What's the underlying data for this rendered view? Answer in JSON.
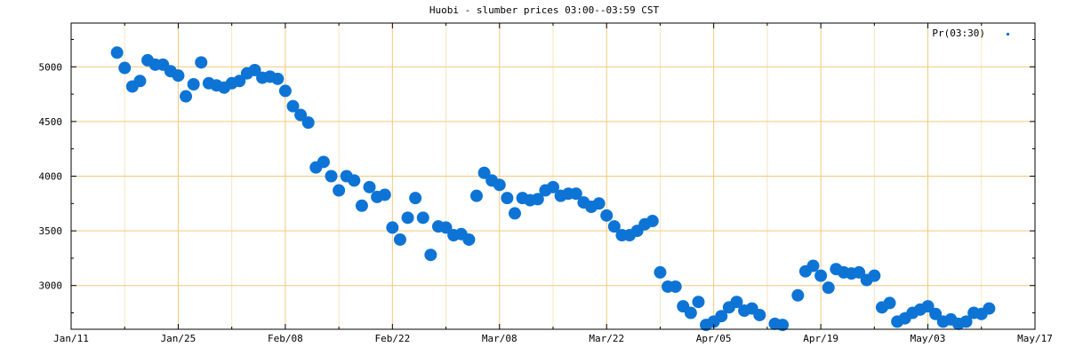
{
  "chart_data": {
    "type": "scatter",
    "title": "Huobi - slumber prices 03:00--03:59 CST",
    "xlabel": "",
    "ylabel": "",
    "x_range": [
      "2018-01-11",
      "2018-05-17"
    ],
    "ylim": [
      2600,
      5400
    ],
    "x_ticks": [
      {
        "date": "2018-01-11",
        "label": "Jan/11"
      },
      {
        "date": "2018-01-25",
        "label": "Jan/25"
      },
      {
        "date": "2018-02-08",
        "label": "Feb/08"
      },
      {
        "date": "2018-02-22",
        "label": "Feb/22"
      },
      {
        "date": "2018-03-08",
        "label": "Mar/08"
      },
      {
        "date": "2018-03-22",
        "label": "Mar/22"
      },
      {
        "date": "2018-04-05",
        "label": "Apr/05"
      },
      {
        "date": "2018-04-19",
        "label": "Apr/19"
      },
      {
        "date": "2018-05-03",
        "label": "May/03"
      },
      {
        "date": "2018-05-17",
        "label": "May/17"
      }
    ],
    "y_ticks": [
      3000,
      3500,
      4000,
      4500,
      5000
    ],
    "grid": true,
    "legend_position": "top-right",
    "colors": {
      "point": "#0d74d6",
      "grid_major": "#f2c97a",
      "grid_minor": "#f8e4bf",
      "axis": "#000000"
    },
    "series": [
      {
        "name": "Pr(03:30)",
        "points": [
          [
            "2018-01-17",
            5130
          ],
          [
            "2018-01-18",
            4990
          ],
          [
            "2018-01-19",
            4820
          ],
          [
            "2018-01-20",
            4870
          ],
          [
            "2018-01-21",
            5060
          ],
          [
            "2018-01-22",
            5020
          ],
          [
            "2018-01-23",
            5020
          ],
          [
            "2018-01-24",
            4960
          ],
          [
            "2018-01-25",
            4920
          ],
          [
            "2018-01-26",
            4730
          ],
          [
            "2018-01-27",
            4840
          ],
          [
            "2018-01-28",
            5040
          ],
          [
            "2018-01-29",
            4850
          ],
          [
            "2018-01-30",
            4830
          ],
          [
            "2018-01-31",
            4810
          ],
          [
            "2018-02-01",
            4850
          ],
          [
            "2018-02-02",
            4870
          ],
          [
            "2018-02-03",
            4940
          ],
          [
            "2018-02-04",
            4970
          ],
          [
            "2018-02-05",
            4900
          ],
          [
            "2018-02-06",
            4910
          ],
          [
            "2018-02-07",
            4890
          ],
          [
            "2018-02-08",
            4780
          ],
          [
            "2018-02-09",
            4640
          ],
          [
            "2018-02-10",
            4560
          ],
          [
            "2018-02-11",
            4490
          ],
          [
            "2018-02-12",
            4080
          ],
          [
            "2018-02-13",
            4130
          ],
          [
            "2018-02-14",
            4000
          ],
          [
            "2018-02-15",
            3870
          ],
          [
            "2018-02-16",
            4000
          ],
          [
            "2018-02-17",
            3960
          ],
          [
            "2018-02-18",
            3730
          ],
          [
            "2018-02-19",
            3900
          ],
          [
            "2018-02-20",
            3810
          ],
          [
            "2018-02-21",
            3830
          ],
          [
            "2018-02-22",
            3530
          ],
          [
            "2018-02-23",
            3420
          ],
          [
            "2018-02-24",
            3620
          ],
          [
            "2018-02-25",
            3800
          ],
          [
            "2018-02-26",
            3620
          ],
          [
            "2018-02-27",
            3280
          ],
          [
            "2018-02-28",
            3540
          ],
          [
            "2018-03-01",
            3530
          ],
          [
            "2018-03-02",
            3460
          ],
          [
            "2018-03-03",
            3470
          ],
          [
            "2018-03-04",
            3420
          ],
          [
            "2018-03-05",
            3820
          ],
          [
            "2018-03-06",
            4030
          ],
          [
            "2018-03-07",
            3960
          ],
          [
            "2018-03-08",
            3920
          ],
          [
            "2018-03-09",
            3800
          ],
          [
            "2018-03-10",
            3660
          ],
          [
            "2018-03-11",
            3800
          ],
          [
            "2018-03-12",
            3780
          ],
          [
            "2018-03-13",
            3790
          ],
          [
            "2018-03-14",
            3870
          ],
          [
            "2018-03-15",
            3900
          ],
          [
            "2018-03-16",
            3820
          ],
          [
            "2018-03-17",
            3840
          ],
          [
            "2018-03-18",
            3840
          ],
          [
            "2018-03-19",
            3760
          ],
          [
            "2018-03-20",
            3720
          ],
          [
            "2018-03-21",
            3750
          ],
          [
            "2018-03-22",
            3640
          ],
          [
            "2018-03-23",
            3540
          ],
          [
            "2018-03-24",
            3460
          ],
          [
            "2018-03-25",
            3460
          ],
          [
            "2018-03-26",
            3500
          ],
          [
            "2018-03-27",
            3560
          ],
          [
            "2018-03-28",
            3590
          ],
          [
            "2018-03-29",
            3120
          ],
          [
            "2018-03-30",
            2990
          ],
          [
            "2018-03-31",
            2990
          ],
          [
            "2018-04-01",
            2810
          ],
          [
            "2018-04-02",
            2750
          ],
          [
            "2018-04-03",
            2850
          ],
          [
            "2018-04-04",
            2640
          ],
          [
            "2018-04-05",
            2670
          ],
          [
            "2018-04-06",
            2720
          ],
          [
            "2018-04-07",
            2800
          ],
          [
            "2018-04-08",
            2850
          ],
          [
            "2018-04-09",
            2770
          ],
          [
            "2018-04-10",
            2790
          ],
          [
            "2018-04-11",
            2730
          ],
          [
            "2018-04-13",
            2650
          ],
          [
            "2018-04-14",
            2640
          ],
          [
            "2018-04-16",
            2910
          ],
          [
            "2018-04-17",
            3130
          ],
          [
            "2018-04-18",
            3180
          ],
          [
            "2018-04-19",
            3090
          ],
          [
            "2018-04-20",
            2980
          ],
          [
            "2018-04-21",
            3150
          ],
          [
            "2018-04-22",
            3120
          ],
          [
            "2018-04-23",
            3110
          ],
          [
            "2018-04-24",
            3120
          ],
          [
            "2018-04-25",
            3050
          ],
          [
            "2018-04-26",
            3090
          ],
          [
            "2018-04-27",
            2800
          ],
          [
            "2018-04-28",
            2840
          ],
          [
            "2018-04-29",
            2670
          ],
          [
            "2018-04-30",
            2700
          ],
          [
            "2018-05-01",
            2750
          ],
          [
            "2018-05-02",
            2780
          ],
          [
            "2018-05-03",
            2810
          ],
          [
            "2018-05-04",
            2740
          ],
          [
            "2018-05-05",
            2670
          ],
          [
            "2018-05-06",
            2690
          ],
          [
            "2018-05-07",
            2650
          ],
          [
            "2018-05-08",
            2670
          ],
          [
            "2018-05-09",
            2750
          ],
          [
            "2018-05-10",
            2740
          ],
          [
            "2018-05-11",
            2790
          ]
        ]
      }
    ]
  }
}
